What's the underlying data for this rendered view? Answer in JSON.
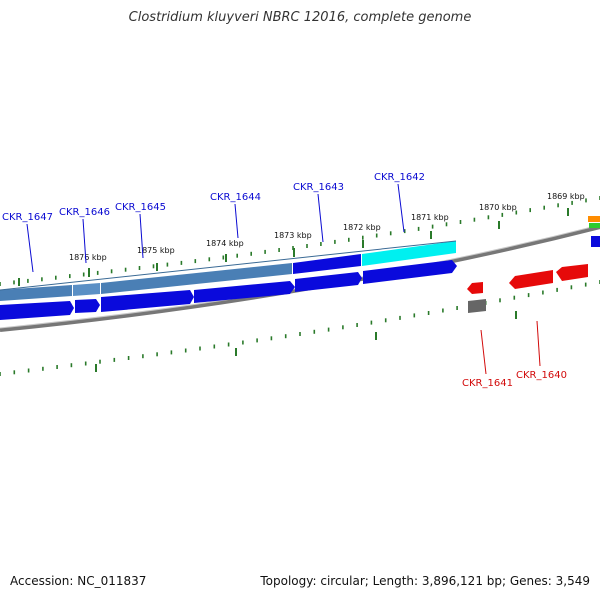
{
  "title": "Clostridium kluyveri NBRC 12016, complete genome",
  "footer": {
    "accession": "Accession: NC_011837",
    "summary": "Topology: circular; Length: 3,896,121 bp; Genes: 3,549"
  },
  "colors": {
    "forward_label": "#0a0ad2",
    "reverse_label": "#d20a0a",
    "forward_gene": "#0a0adc",
    "reverse_gene": "#e60a0a",
    "pseudo_gene": "#666666",
    "cds_band": "#4a7fb5",
    "highlight_band": "#00f0f0",
    "tick": "#2a7a2a",
    "backbone": "#888888"
  },
  "ticks": [
    {
      "id": "1876",
      "label": "1876 kbp"
    },
    {
      "id": "1875",
      "label": "1875 kbp"
    },
    {
      "id": "1874",
      "label": "1874 kbp"
    },
    {
      "id": "1873",
      "label": "1873 kbp"
    },
    {
      "id": "1872",
      "label": "1872 kbp"
    },
    {
      "id": "1871",
      "label": "1871 kbp"
    },
    {
      "id": "1870",
      "label": "1870 kbp"
    },
    {
      "id": "1869",
      "label": "1869 kbp"
    }
  ],
  "genes_forward": [
    {
      "id": "CKR_1647",
      "label": "CKR_1647"
    },
    {
      "id": "CKR_1646",
      "label": "CKR_1646"
    },
    {
      "id": "CKR_1645",
      "label": "CKR_1645"
    },
    {
      "id": "CKR_1644",
      "label": "CKR_1644"
    },
    {
      "id": "CKR_1643",
      "label": "CKR_1643"
    },
    {
      "id": "CKR_1642",
      "label": "CKR_1642"
    }
  ],
  "genes_reverse": [
    {
      "id": "CKR_1641",
      "label": "CKR_1641"
    },
    {
      "id": "CKR_1640",
      "label": "CKR_1640"
    }
  ]
}
